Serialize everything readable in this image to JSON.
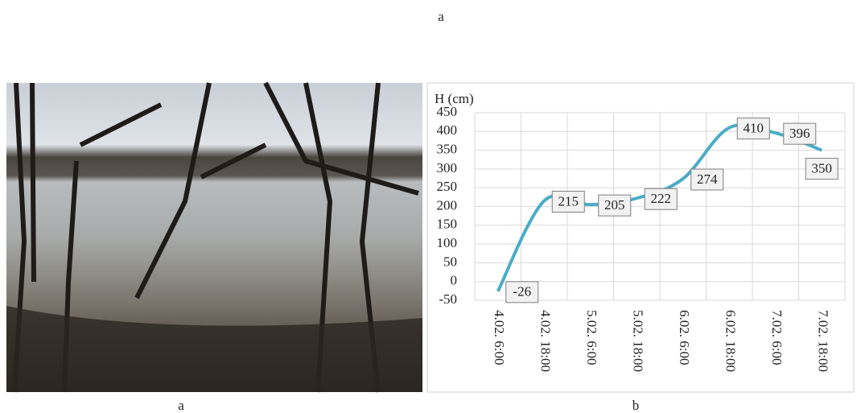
{
  "captions": {
    "top": "a",
    "photo": "a",
    "chart": "b"
  },
  "chart_data": {
    "type": "line",
    "y_label": "H (cm)",
    "categories": [
      "4.02. 6:00",
      "4.02. 18:00",
      "5.02. 6:00",
      "5.02. 18:00",
      "6.02. 6:00",
      "6.02. 18:00",
      "7.02. 6:00",
      "7.02. 18:00"
    ],
    "values": [
      -26,
      215,
      205,
      222,
      274,
      410,
      396,
      350
    ],
    "color": "#4bacc6",
    "ylim": [
      -50,
      450
    ],
    "yticks": [
      -50,
      0,
      50,
      100,
      150,
      200,
      250,
      300,
      350,
      400,
      450
    ],
    "grid": true
  }
}
